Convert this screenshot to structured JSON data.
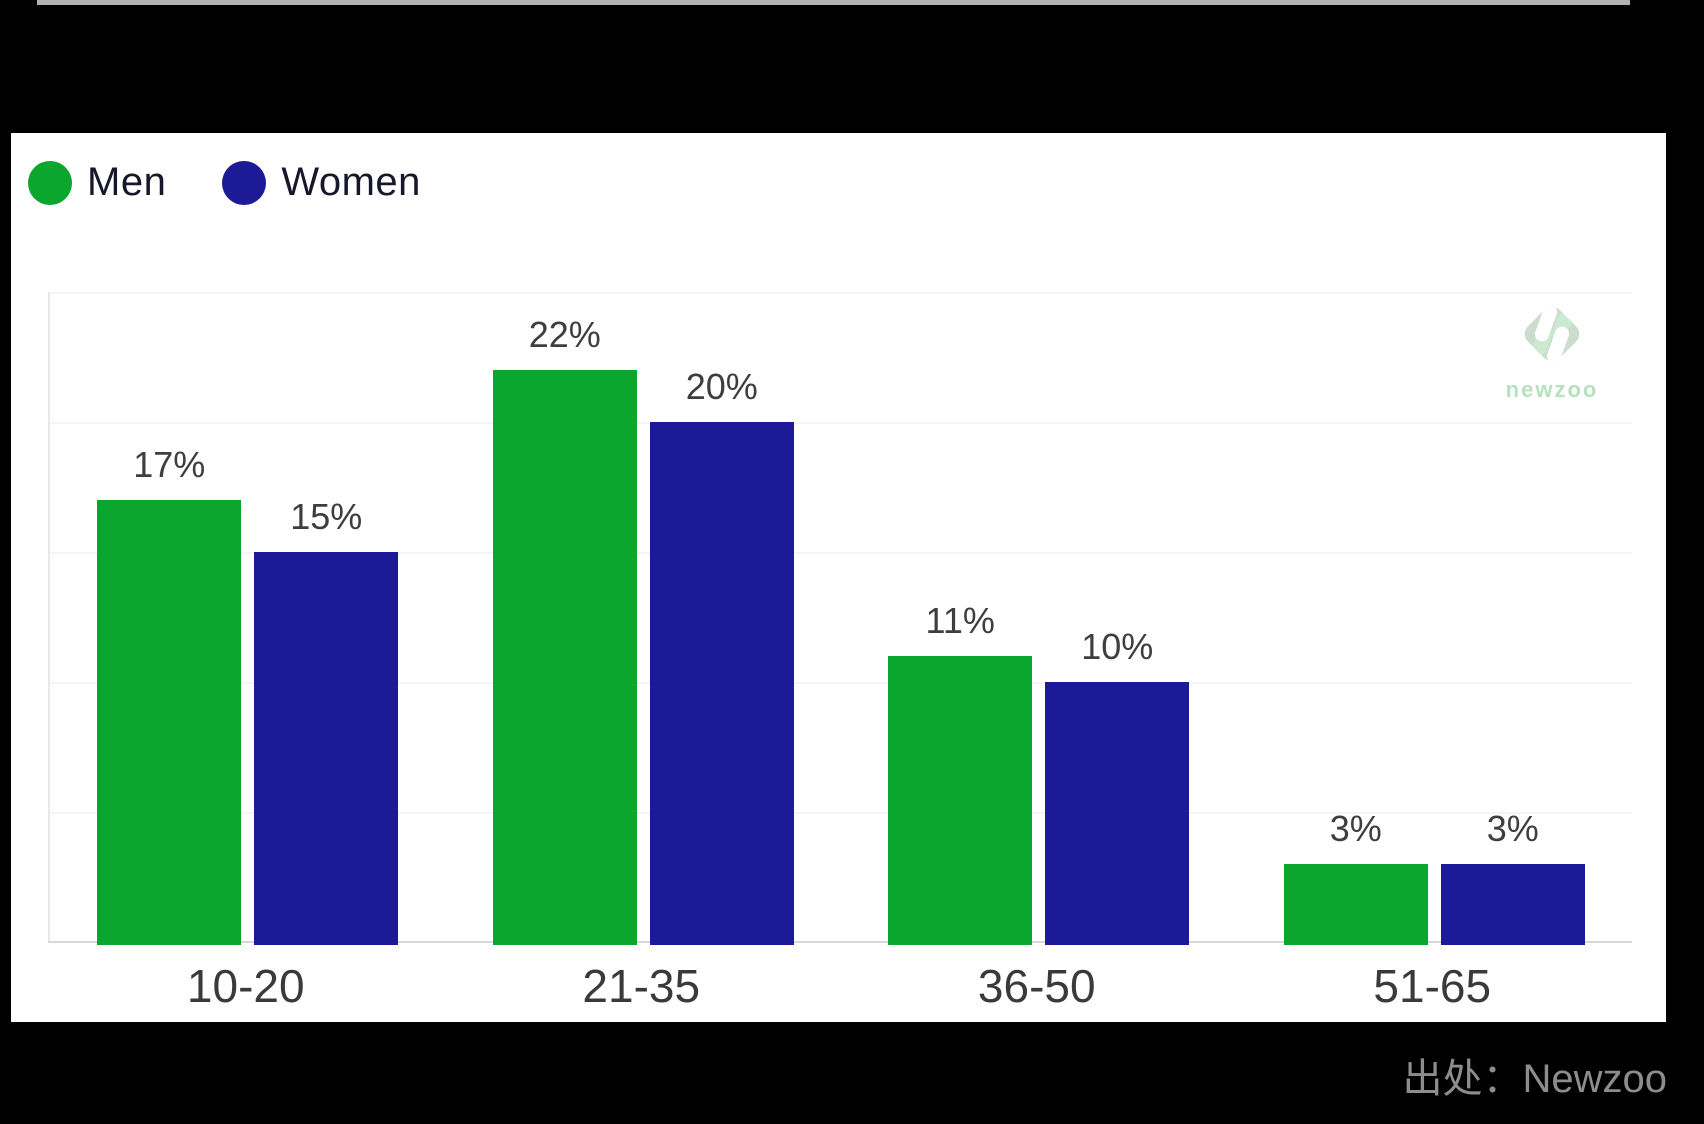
{
  "page": {
    "background": "#000000",
    "top_strip_color": "#b1b1b1",
    "card_color": "#ffffff"
  },
  "chart_data": {
    "type": "bar",
    "categories": [
      "10-20",
      "21-35",
      "36-50",
      "51-65"
    ],
    "series": [
      {
        "name": "Men",
        "color": "#0aa62e",
        "values": [
          17,
          22,
          11,
          3
        ]
      },
      {
        "name": "Women",
        "color": "#1c1a97",
        "values": [
          15,
          20,
          10,
          3
        ]
      }
    ],
    "value_suffix": "%",
    "value_labels": [
      [
        "17%",
        "22%",
        "11%",
        "3%"
      ],
      [
        "15%",
        "20%",
        "10%",
        "3%"
      ]
    ],
    "ylim": [
      0,
      25
    ],
    "gridline_step": 5,
    "grid": true,
    "legend_position": "top-left",
    "title": "",
    "xlabel": "",
    "ylabel": ""
  },
  "watermark": {
    "logo": "newzoo-diamond-logo",
    "text": "newzoo",
    "color": "#a9deb1"
  },
  "caption": {
    "text": "出处：Newzoo"
  }
}
